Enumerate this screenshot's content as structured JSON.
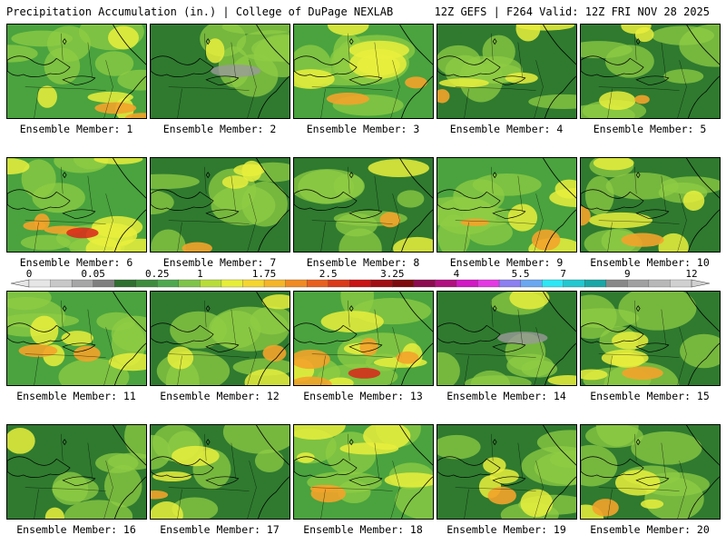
{
  "header": {
    "title": "Precipitation Accumulation (in.) | College of DuPage NEXLAB",
    "run_info": "12Z GEFS | F264 Valid: 12Z FRI NOV 28 2025"
  },
  "member_label_prefix": "Ensemble Member: ",
  "members": [
    {
      "number": "1",
      "blend": 0.55,
      "wet": 0.35
    },
    {
      "number": "2",
      "blend": 0.15,
      "wet": 0.0
    },
    {
      "number": "3",
      "blend": 0.6,
      "wet": 0.45
    },
    {
      "number": "4",
      "blend": 0.45,
      "wet": 0.2
    },
    {
      "number": "5",
      "blend": 0.35,
      "wet": 0.1
    },
    {
      "number": "6",
      "blend": 0.7,
      "wet": 0.6
    },
    {
      "number": "7",
      "blend": 0.4,
      "wet": 0.1
    },
    {
      "number": "8",
      "blend": 0.3,
      "wet": 0.15
    },
    {
      "number": "9",
      "blend": 0.55,
      "wet": 0.4
    },
    {
      "number": "10",
      "blend": 0.5,
      "wet": 0.3
    },
    {
      "number": "11",
      "blend": 0.55,
      "wet": 0.3
    },
    {
      "number": "12",
      "blend": 0.35,
      "wet": 0.1
    },
    {
      "number": "13",
      "blend": 0.75,
      "wet": 0.7
    },
    {
      "number": "14",
      "blend": 0.2,
      "wet": 0.05
    },
    {
      "number": "15",
      "blend": 0.45,
      "wet": 0.25
    },
    {
      "number": "16",
      "blend": 0.3,
      "wet": 0.05
    },
    {
      "number": "17",
      "blend": 0.35,
      "wet": 0.1
    },
    {
      "number": "18",
      "blend": 0.6,
      "wet": 0.4
    },
    {
      "number": "19",
      "blend": 0.5,
      "wet": 0.2
    },
    {
      "number": "20",
      "blend": 0.35,
      "wet": 0.1
    }
  ],
  "colorbar": {
    "ticks": [
      "0",
      "0.05",
      "0.25",
      "1",
      "1.75",
      "2.5",
      "3.25",
      "4",
      "5.5",
      "7",
      "9",
      "12"
    ],
    "colors": [
      "#e6e6e6",
      "#c8c8c8",
      "#a6a6a6",
      "#7f7f7f",
      "#2f6f2f",
      "#3e8b3e",
      "#4fa84f",
      "#7fc44a",
      "#b8dd3a",
      "#e6ee3a",
      "#f5d530",
      "#f5b52a",
      "#f08a24",
      "#e8601f",
      "#d93a1a",
      "#c81414",
      "#a00f14",
      "#7d0a0f",
      "#8c0a50",
      "#b0107f",
      "#d119c4",
      "#e339e3",
      "#8c7ff0",
      "#6aa7f0",
      "#2ee6f5",
      "#22c7cf",
      "#1aa6a6",
      "#888888",
      "#a0a0a0",
      "#b8b8b8",
      "#d0d0d0"
    ]
  },
  "palette": {
    "dark_green": "#2f7a2f",
    "mid_green": "#4aa33e",
    "light_green": "#8fcc44",
    "yellow": "#e9ef3c",
    "orange": "#f3a32a",
    "red": "#d9261a",
    "gray": "#9a9a9a",
    "border": "#000000"
  }
}
